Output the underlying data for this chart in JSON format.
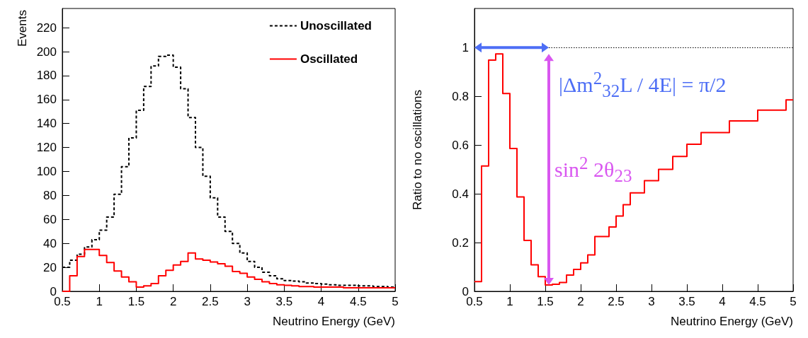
{
  "chart_data": [
    {
      "type": "histogram",
      "xlabel": "Neutrino Energy (GeV)",
      "ylabel": "Events",
      "bins": [
        0.5,
        0.6,
        0.7,
        0.8,
        0.9,
        1.0,
        1.1,
        1.2,
        1.3,
        1.4,
        1.5,
        1.6,
        1.7,
        1.8,
        1.9,
        2.0,
        2.1,
        2.2,
        2.3,
        2.4,
        2.5,
        2.6,
        2.7,
        2.8,
        2.9,
        3.0,
        3.1,
        3.2,
        3.3,
        3.4,
        3.5,
        3.6,
        3.7,
        3.8,
        3.9,
        4.0,
        4.1,
        4.2,
        4.3,
        4.4,
        4.5,
        4.6,
        4.7,
        4.8,
        4.9,
        5.0
      ],
      "series": [
        {
          "name": "Unoscillated",
          "color": "#000000",
          "line_style": "dashed",
          "values": [
            20,
            26,
            31,
            37,
            43,
            51,
            62,
            81,
            104,
            128,
            151,
            171,
            188,
            196,
            197,
            187,
            169,
            145,
            120,
            96,
            78,
            62,
            50,
            40,
            32,
            25,
            20,
            16,
            13,
            10.5,
            9,
            8.5,
            8,
            7,
            6.5,
            6,
            5.5,
            5,
            5,
            5,
            4.5,
            4.5,
            4,
            4,
            3.5
          ]
        },
        {
          "name": "Oscillated",
          "color": "#ff0000",
          "line_style": "solid",
          "values": [
            0,
            13,
            29,
            35,
            35,
            30,
            24,
            17,
            12,
            8,
            3.5,
            4.5,
            6.5,
            13,
            17.5,
            22,
            25,
            32,
            27,
            26,
            24.5,
            23,
            21,
            16.5,
            15,
            12,
            10,
            8,
            6.5,
            5.5,
            5,
            4.5,
            4,
            4,
            3.5,
            3.5,
            3.5,
            3.5,
            3,
            3,
            3,
            3,
            3,
            3,
            3
          ]
        }
      ],
      "xlim": [
        0.5,
        5
      ],
      "xticks": [
        0.5,
        1,
        1.5,
        2,
        2.5,
        3,
        3.5,
        4,
        4.5,
        5
      ],
      "ylim": [
        0,
        236
      ],
      "yticks": [
        0,
        20,
        40,
        60,
        80,
        100,
        120,
        140,
        160,
        180,
        200,
        220
      ],
      "legend": "top right",
      "grid": false
    },
    {
      "type": "histogram",
      "xlabel": "Neutrino Energy (GeV)",
      "ylabel": "Ratio to no oscillations",
      "bins": [
        0.5,
        0.6,
        0.7,
        0.8,
        0.9,
        1.0,
        1.1,
        1.2,
        1.3,
        1.4,
        1.5,
        1.6,
        1.7,
        1.8,
        1.9,
        2.0,
        2.1,
        2.2,
        2.4,
        2.5,
        2.6,
        2.7,
        2.9,
        3.1,
        3.3,
        3.5,
        3.7,
        4.1,
        4.5,
        4.9,
        5.0
      ],
      "values": [
        0.04,
        0.514,
        0.948,
        0.974,
        0.811,
        0.586,
        0.387,
        0.209,
        0.109,
        0.06,
        0.026,
        0.029,
        0.036,
        0.067,
        0.09,
        0.117,
        0.149,
        0.225,
        0.264,
        0.309,
        0.355,
        0.404,
        0.454,
        0.5,
        0.553,
        0.603,
        0.651,
        0.699,
        0.743,
        0.785
      ],
      "color": "#ff0000",
      "xlim": [
        0.5,
        5
      ],
      "xticks": [
        0.5,
        1,
        1.5,
        2,
        2.5,
        3,
        3.5,
        4,
        4.5,
        5
      ],
      "ylim": [
        0,
        1.16
      ],
      "yticks": [
        0,
        0.2,
        0.4,
        0.6,
        0.8,
        1
      ],
      "grid": false,
      "ref_lines": [
        {
          "axis": "y",
          "value": 1,
          "color": "#000000",
          "line_style": "dotted"
        }
      ],
      "annotations": [
        "|Δm$^{2}$$_{32}$L / 4E| = π/2",
        "sin$^{2}$ 2θ$_{23}$"
      ]
    }
  ]
}
